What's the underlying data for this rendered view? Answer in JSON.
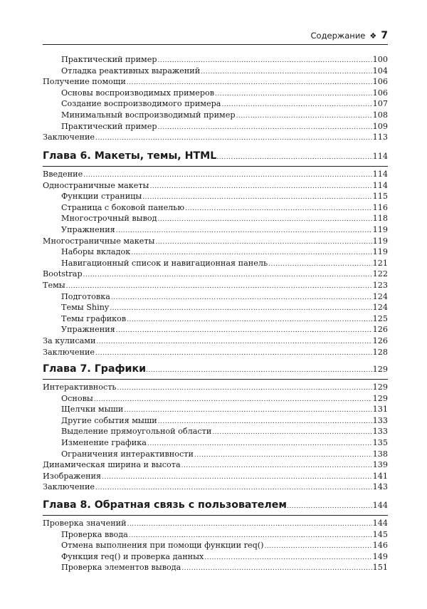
{
  "header": {
    "title": "Содержание",
    "ornament": "❖",
    "page": "7"
  },
  "blocks": [
    {
      "chapter": null,
      "entries": [
        {
          "label": "Практический пример",
          "page": "100",
          "level": 2
        },
        {
          "label": "Отладка реактивных выражений",
          "page": "104",
          "level": 2
        },
        {
          "label": "Получение помощи",
          "page": "106",
          "level": 1
        },
        {
          "label": "Основы воспроизводимых примеров",
          "page": "106",
          "level": 2
        },
        {
          "label": "Создание воспроизводимого примера",
          "page": "107",
          "level": 2
        },
        {
          "label": "Минимальный воспроизводимый пример",
          "page": "108",
          "level": 2
        },
        {
          "label": "Практический пример",
          "page": "109",
          "level": 2
        },
        {
          "label": "Заключение",
          "page": "113",
          "level": 1
        }
      ]
    },
    {
      "chapter": {
        "label": "Глава 6. Макеты, темы, HTML",
        "page": "114"
      },
      "entries": [
        {
          "label": "Введение",
          "page": "114",
          "level": 1
        },
        {
          "label": "Одностраничные макеты",
          "page": "114",
          "level": 1
        },
        {
          "label": "Функции страницы",
          "page": "115",
          "level": 2
        },
        {
          "label": "Страница с боковой панелью",
          "page": "116",
          "level": 2
        },
        {
          "label": "Многострочный вывод",
          "page": "118",
          "level": 2
        },
        {
          "label": "Упражнения",
          "page": "119",
          "level": 2
        },
        {
          "label": "Многостраничные макеты",
          "page": "119",
          "level": 1
        },
        {
          "label": "Наборы вкладок",
          "page": "119",
          "level": 2
        },
        {
          "label": "Навигационный список и навигационная панель",
          "page": "121",
          "level": 2
        },
        {
          "label": "Bootstrap",
          "page": "122",
          "level": 1
        },
        {
          "label": "Темы",
          "page": "123",
          "level": 1
        },
        {
          "label": "Подготовка",
          "page": "124",
          "level": 2
        },
        {
          "label": "Темы Shiny",
          "page": "124",
          "level": 2
        },
        {
          "label": "Темы графиков",
          "page": "125",
          "level": 2
        },
        {
          "label": "Упражнения",
          "page": "126",
          "level": 2
        },
        {
          "label": "За кулисами",
          "page": "126",
          "level": 1
        },
        {
          "label": "Заключение",
          "page": "128",
          "level": 1
        }
      ]
    },
    {
      "chapter": {
        "label": "Глава 7. Графики",
        "page": "129"
      },
      "entries": [
        {
          "label": "Интерактивность",
          "page": "129",
          "level": 1
        },
        {
          "label": "Основы",
          "page": "129",
          "level": 2
        },
        {
          "label": "Щелчки мыши",
          "page": "131",
          "level": 2
        },
        {
          "label": "Другие события мыши",
          "page": "133",
          "level": 2
        },
        {
          "label": "Выделение прямоугольной области",
          "page": "133",
          "level": 2
        },
        {
          "label": "Изменение графика",
          "page": "135",
          "level": 2
        },
        {
          "label": "Ограничения интерактивности",
          "page": "138",
          "level": 2
        },
        {
          "label": "Динамическая ширина и высота",
          "page": "139",
          "level": 1
        },
        {
          "label": "Изображения",
          "page": "141",
          "level": 1
        },
        {
          "label": "Заключение",
          "page": "143",
          "level": 1
        }
      ]
    },
    {
      "chapter": {
        "label": "Глава 8. Обратная связь с пользователем",
        "page": "144"
      },
      "entries": [
        {
          "label": "Проверка значений",
          "page": "144",
          "level": 1
        },
        {
          "label": "Проверка ввода",
          "page": "145",
          "level": 2
        },
        {
          "label": "Отмена выполнения при помощи функции req()",
          "page": "146",
          "level": 2
        },
        {
          "label": "Функция req() и проверка данных",
          "page": "149",
          "level": 2
        },
        {
          "label": "Проверка элементов вывода",
          "page": "151",
          "level": 2
        }
      ]
    }
  ]
}
